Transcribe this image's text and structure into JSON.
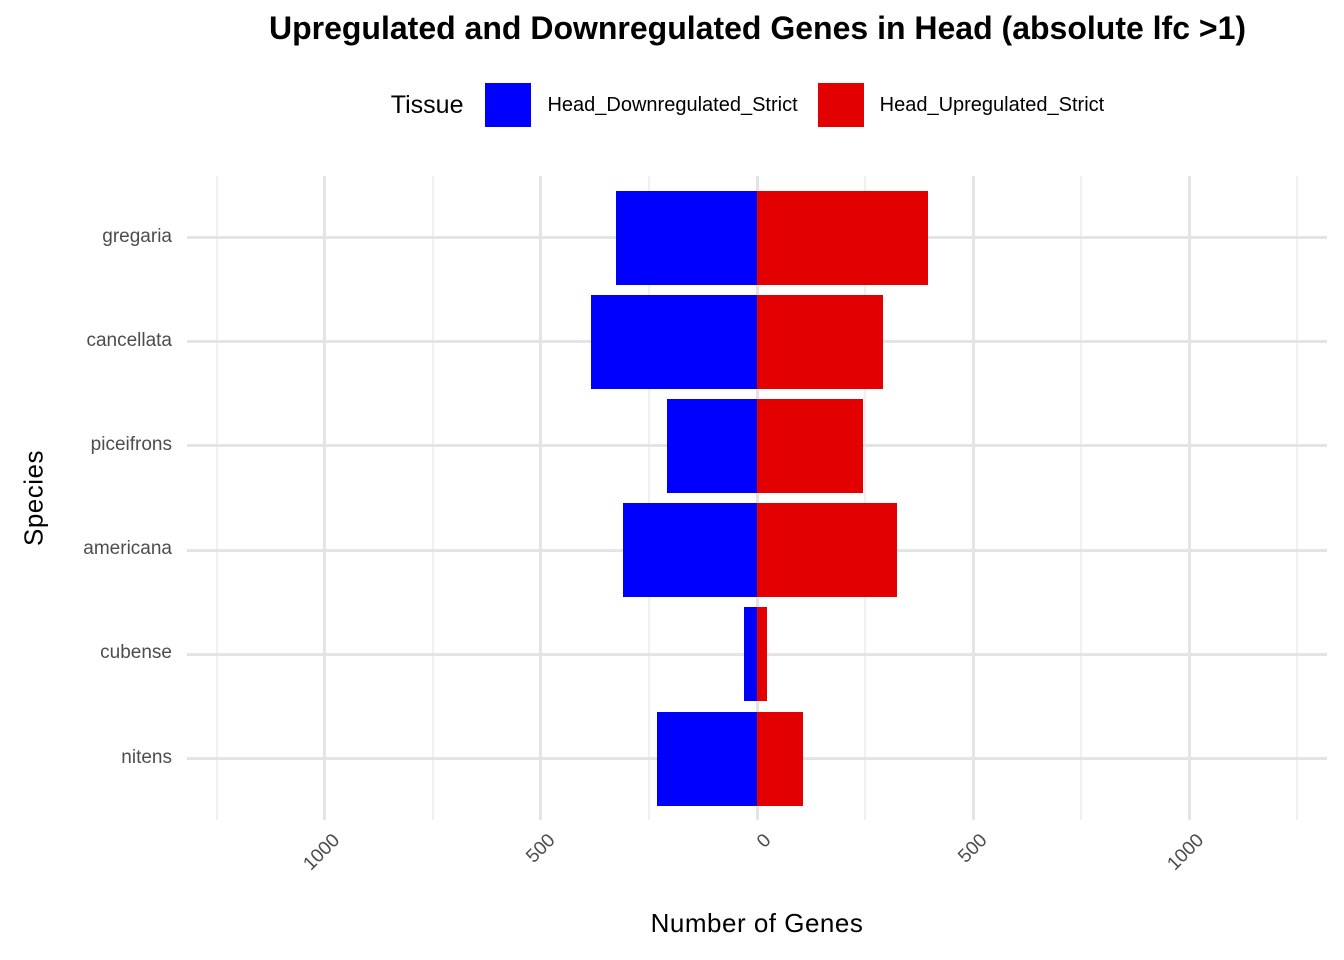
{
  "title": "Upregulated and Downregulated Genes in Head (absolute lfc >1)",
  "chart_data": {
    "type": "bar",
    "orientation": "horizontal",
    "diverging": true,
    "title": "Upregulated and Downregulated Genes in Head (absolute lfc >1)",
    "xlabel": "Number of Genes",
    "ylabel": "Species",
    "legend_title": "Tissue",
    "legend_position": "top",
    "grid": true,
    "categories": [
      "gregaria",
      "cancellata",
      "piceifrons",
      "americana",
      "cubense",
      "nitens"
    ],
    "series": [
      {
        "name": "Head_Downregulated_Strict",
        "color": "#0000ff",
        "values": [
          -327,
          -385,
          -209,
          -311,
          -29,
          -231
        ]
      },
      {
        "name": "Head_Upregulated_Strict",
        "color": "#e20000",
        "values": [
          396,
          291,
          246,
          323,
          24,
          107
        ]
      }
    ],
    "x_ticks": {
      "values": [
        -1000,
        -500,
        0,
        500,
        1000
      ],
      "labels": [
        "1000",
        "500",
        "0",
        "500",
        "1000"
      ]
    },
    "x_minor_ticks": [
      -1250,
      -750,
      -250,
      250,
      750,
      1250
    ],
    "xlim": [
      -1319,
      1319
    ],
    "colors": {
      "downregulated": "#0000ff",
      "upregulated": "#e20000",
      "grid_major": "#e4e4e4",
      "grid_minor": "#f0f0f0",
      "axis_text": "#4d4d4d",
      "background": "#ffffff"
    }
  }
}
